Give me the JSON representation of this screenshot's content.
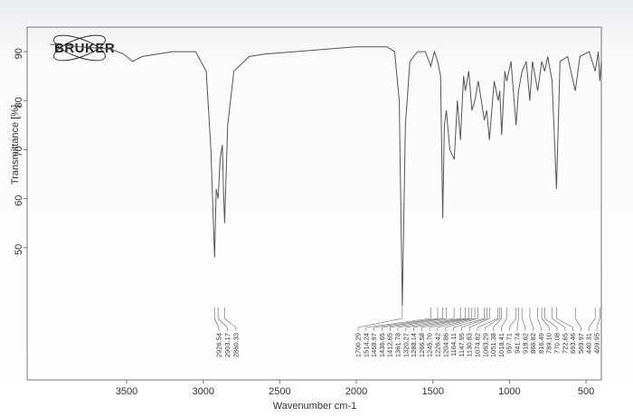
{
  "chart_data": {
    "type": "line",
    "logo": "BRUKER",
    "y_label": "Transmittance [%]",
    "x_label": "Wavenumber cm-1",
    "xlim": [
      4150,
      400
    ],
    "ylim": [
      23,
      95
    ],
    "xticks": [
      3500,
      3000,
      2500,
      2000,
      1500,
      1000,
      500
    ],
    "yticks": [
      50,
      60,
      70,
      80,
      90
    ],
    "series": [
      {
        "color": "#555555",
        "x": [
          4000,
          3800,
          3600,
          3520,
          3460,
          3400,
          3200,
          3050,
          2980,
          2950,
          2926,
          2915,
          2903,
          2890,
          2875,
          2868,
          2860,
          2840,
          2800,
          2700,
          2600,
          2400,
          2200,
          2000,
          1800,
          1750,
          1720,
          1700,
          1680,
          1650,
          1600,
          1550,
          1514,
          1490,
          1469,
          1450,
          1436,
          1425,
          1412,
          1390,
          1361,
          1340,
          1320,
          1300,
          1288,
          1266,
          1245,
          1226,
          1204,
          1164,
          1148,
          1131,
          1100,
          1074,
          1063,
          1051,
          1030,
          1018,
          990,
          957,
          941,
          918,
          890,
          867,
          850,
          816,
          789,
          770,
          750,
          722,
          693,
          670,
          620,
          570,
          540,
          480,
          440,
          420,
          410,
          400
        ],
        "values": [
          91.5,
          91,
          90.5,
          89.5,
          88,
          89,
          90,
          90,
          86,
          70,
          48,
          62,
          60,
          68,
          71,
          62,
          55,
          75,
          86,
          89,
          89.5,
          90,
          90.5,
          91,
          91,
          90,
          80,
          38,
          75,
          88,
          90,
          90,
          87,
          90,
          88,
          85,
          56,
          75,
          78,
          70,
          68,
          80,
          72,
          85,
          82,
          86,
          78,
          80,
          84,
          76,
          78,
          72,
          84,
          80,
          82,
          73,
          86,
          84,
          88,
          75,
          82,
          86,
          88,
          80,
          88,
          82,
          88,
          86,
          89,
          84,
          62,
          88,
          89,
          82,
          89,
          90,
          86,
          90,
          84,
          88
        ]
      }
    ],
    "peak_labels": [
      {
        "value": 2926.54,
        "label": "2926.54"
      },
      {
        "value": 2903.17,
        "label": "2903.17"
      },
      {
        "value": 2860.33,
        "label": "2860.33"
      },
      {
        "value": 1700.29,
        "label": "1700.29"
      },
      {
        "value": 1514.24,
        "label": "1514.24"
      },
      {
        "value": 1468.97,
        "label": "1468.97"
      },
      {
        "value": 1436.65,
        "label": "1436.65"
      },
      {
        "value": 1412.65,
        "label": "1412.65"
      },
      {
        "value": 1361.78,
        "label": "1361.78"
      },
      {
        "value": 1320.27,
        "label": "1320.27"
      },
      {
        "value": 1288.14,
        "label": "1288.14"
      },
      {
        "value": 1266.58,
        "label": "1266.58"
      },
      {
        "value": 1245.7,
        "label": "1245.70"
      },
      {
        "value": 1226.42,
        "label": "1226.42"
      },
      {
        "value": 1204.86,
        "label": "1204.86"
      },
      {
        "value": 1164.11,
        "label": "1164.11"
      },
      {
        "value": 1147.95,
        "label": "1147.95"
      },
      {
        "value": 1130.83,
        "label": "1130.83"
      },
      {
        "value": 1074.82,
        "label": "1074.82"
      },
      {
        "value": 1063.29,
        "label": "1063.29"
      },
      {
        "value": 1051.38,
        "label": "1051.38"
      },
      {
        "value": 1018.41,
        "label": "1018.41"
      },
      {
        "value": 957.71,
        "label": "957.71"
      },
      {
        "value": 941.74,
        "label": "941.74"
      },
      {
        "value": 918.62,
        "label": "918.62"
      },
      {
        "value": 866.82,
        "label": "866.82"
      },
      {
        "value": 816.49,
        "label": "816.49"
      },
      {
        "value": 789.1,
        "label": "789.10"
      },
      {
        "value": 770.08,
        "label": "770.08"
      },
      {
        "value": 722.65,
        "label": "722.65"
      },
      {
        "value": 693.46,
        "label": "693.46"
      },
      {
        "value": 569.97,
        "label": "569.97"
      },
      {
        "value": 440.31,
        "label": "440.31"
      },
      {
        "value": 409.95,
        "label": "409.95"
      }
    ]
  }
}
